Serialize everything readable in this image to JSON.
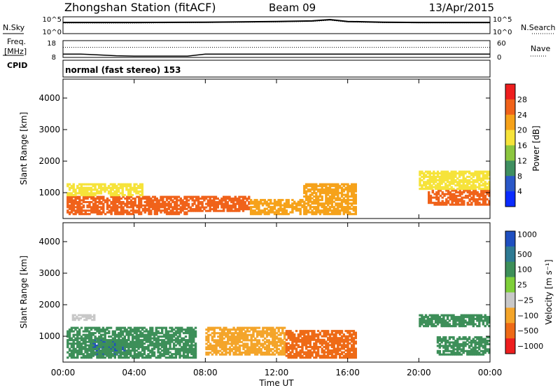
{
  "header": {
    "title": "Zhongshan Station (fitACF)",
    "beam": "Beam 09",
    "date": "13/Apr/2015"
  },
  "side_labels": {
    "nsky": "N.Sky",
    "freq_line1": "Freq.",
    "freq_line2": "[MHz]",
    "cpid": "CPID",
    "nsearch": "N.Search",
    "nave": "Nave"
  },
  "mode_text": "normal (fast stereo) 153",
  "chart_data": [
    {
      "type": "line",
      "panel": "noise",
      "series": [
        {
          "name": "N.Sky",
          "x": [
            "00:00",
            "04:00",
            "08:00",
            "12:00",
            "14:00",
            "15:00",
            "16:00",
            "18:00",
            "20:00",
            "24:00"
          ],
          "y": [
            2000,
            2000,
            2500,
            4000,
            6000,
            15000,
            4000,
            2500,
            2000,
            2000
          ]
        },
        {
          "name": "N.Search",
          "x": [
            "00:00",
            "04:00",
            "08:00",
            "12:00",
            "14:00",
            "15:00",
            "16:00",
            "18:00",
            "20:00",
            "24:00"
          ],
          "y": [
            1500,
            1400,
            2000,
            3000,
            4500,
            9000,
            3000,
            1800,
            1600,
            1600
          ]
        }
      ],
      "left_ticks": [
        "10^5",
        "10^0"
      ],
      "right_ticks": [
        "10^5",
        "10^0"
      ],
      "scale": "log"
    },
    {
      "type": "line",
      "panel": "frequency",
      "series": [
        {
          "name": "Freq",
          "x": [
            "00:00",
            "01:00",
            "02:00",
            "03:00",
            "04:00",
            "05:00",
            "06:00",
            "07:00",
            "08:00",
            "12:00",
            "16:00",
            "20:00",
            "24:00"
          ],
          "y": [
            10,
            10,
            9.5,
            9,
            8.8,
            8.8,
            8.8,
            8.8,
            10,
            10,
            10,
            10,
            10
          ]
        },
        {
          "name": "Nave",
          "x": [
            "00:00",
            "06:00",
            "07:00",
            "24:00"
          ],
          "y": [
            36,
            36,
            36,
            36
          ]
        }
      ],
      "left_ticks": [
        18,
        8
      ],
      "right_ticks": [
        60,
        0
      ]
    },
    {
      "type": "heatmap",
      "panel": "power",
      "xlabel": "",
      "ylabel": "Slant Range [km]",
      "xlim": [
        "00:00",
        "24:00"
      ],
      "ylim": [
        180,
        4600
      ],
      "yticks": [
        1000,
        2000,
        3000,
        4000
      ],
      "colorbar_label": "Power [dB]",
      "colorbar_ticks": [
        4,
        8,
        12,
        16,
        20,
        24,
        28
      ],
      "colorbar_colors": [
        "#0a2bff",
        "#2a58c8",
        "#3f8f60",
        "#8cc63f",
        "#f6e33a",
        "#f6a21a",
        "#f0621a",
        "#ee1e1e"
      ],
      "echo_regions": [
        {
          "t0": 0.2,
          "t1": 7.0,
          "r0": 300,
          "r1": 900,
          "level": 26
        },
        {
          "t0": 0.2,
          "t1": 4.5,
          "r0": 900,
          "r1": 1300,
          "level": 18
        },
        {
          "t0": 7.0,
          "t1": 10.5,
          "r0": 400,
          "r1": 900,
          "level": 24
        },
        {
          "t0": 10.5,
          "t1": 16.5,
          "r0": 300,
          "r1": 800,
          "level": 20
        },
        {
          "t0": 13.5,
          "t1": 16.5,
          "r0": 800,
          "r1": 1300,
          "level": 20
        },
        {
          "t0": 20.5,
          "t1": 24.0,
          "r0": 600,
          "r1": 1100,
          "level": 26
        },
        {
          "t0": 20.0,
          "t1": 24.0,
          "r0": 1100,
          "r1": 1700,
          "level": 16
        }
      ]
    },
    {
      "type": "heatmap",
      "panel": "velocity",
      "xlabel": "Time UT",
      "ylabel": "Slant Range [km]",
      "xlim": [
        "00:00",
        "24:00"
      ],
      "ylim": [
        180,
        4600
      ],
      "yticks": [
        1000,
        2000,
        3000,
        4000
      ],
      "xticks": [
        "00:00",
        "04:00",
        "08:00",
        "12:00",
        "16:00",
        "20:00",
        "00:00"
      ],
      "colorbar_label": "Velocity [m s⁻¹]",
      "colorbar_ticks": [
        "1000",
        "500",
        "100",
        "25",
        "−25",
        "−100",
        "−500",
        "−1000"
      ],
      "colorbar_colors": [
        "#1f4fc0",
        "#2e7a93",
        "#3d8f59",
        "#7fcf3a",
        "#c8c8c8",
        "#f4a52a",
        "#ee6a16",
        "#ee1e1e"
      ],
      "echo_regions": [
        {
          "t0": 1.5,
          "t1": 3.5,
          "r0": 400,
          "r1": 900,
          "vel": 1000
        },
        {
          "t0": 0.2,
          "t1": 7.5,
          "r0": 300,
          "r1": 1300,
          "vel": 100
        },
        {
          "t0": 0.5,
          "t1": 1.8,
          "r0": 1500,
          "r1": 1700,
          "vel": 25
        },
        {
          "t0": 8.0,
          "t1": 12.5,
          "r0": 400,
          "r1": 1300,
          "vel": -100
        },
        {
          "t0": 12.5,
          "t1": 16.5,
          "r0": 300,
          "r1": 1200,
          "vel": -500
        },
        {
          "t0": 20.0,
          "t1": 24.0,
          "r0": 1300,
          "r1": 1700,
          "vel": 100
        },
        {
          "t0": 21.0,
          "t1": 24.0,
          "r0": 400,
          "r1": 1000,
          "vel": 100
        }
      ]
    }
  ]
}
